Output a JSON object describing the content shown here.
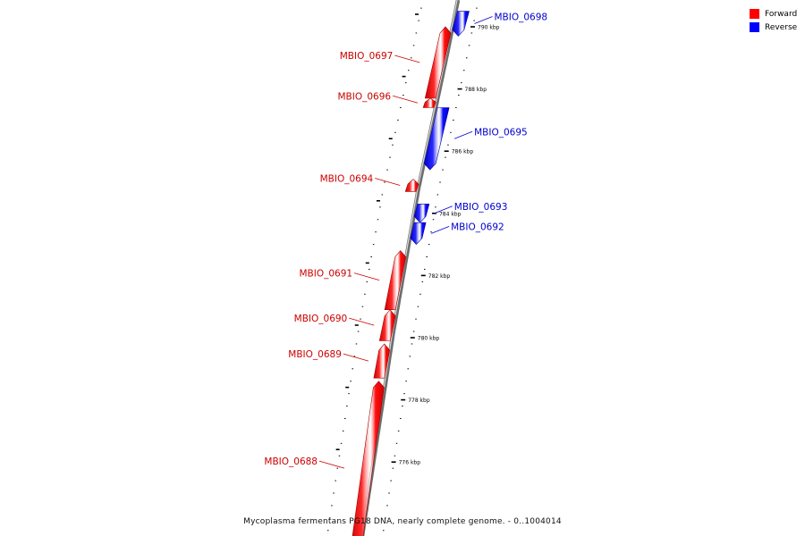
{
  "caption": "Mycoplasma fermentans PG18 DNA, nearly complete genome. - 0..1004014",
  "legend": [
    {
      "label": "Forward",
      "color": "#ff0000"
    },
    {
      "label": "Reverse",
      "color": "#0000ff"
    }
  ],
  "colors": {
    "forward": "#ff0000",
    "reverse": "#0000ff",
    "backbone": "#888888",
    "forward_label": "#cc0000",
    "reverse_label": "#0000cc"
  },
  "ticks": [
    {
      "label": "790 kbp"
    },
    {
      "label": "788 kbp"
    },
    {
      "label": "786 kbp"
    },
    {
      "label": "784 kbp"
    },
    {
      "label": "782 kbp"
    },
    {
      "label": "780 kbp"
    },
    {
      "label": "778 kbp"
    },
    {
      "label": "776 kbp"
    }
  ],
  "genes": [
    {
      "name": "MBIO_0698",
      "strand": "reverse",
      "start_kbp": 789.7,
      "end_kbp": 790.5
    },
    {
      "name": "MBIO_0697",
      "strand": "forward",
      "start_kbp": 787.7,
      "end_kbp": 790.0
    },
    {
      "name": "MBIO_0696",
      "strand": "forward",
      "start_kbp": 787.4,
      "end_kbp": 787.7
    },
    {
      "name": "MBIO_0695",
      "strand": "reverse",
      "start_kbp": 785.4,
      "end_kbp": 787.4
    },
    {
      "name": "MBIO_0694",
      "strand": "forward",
      "start_kbp": 784.7,
      "end_kbp": 785.1
    },
    {
      "name": "MBIO_0693",
      "strand": "reverse",
      "start_kbp": 783.7,
      "end_kbp": 784.3
    },
    {
      "name": "MBIO_0692",
      "strand": "reverse",
      "start_kbp": 783.0,
      "end_kbp": 783.7
    },
    {
      "name": "MBIO_0691",
      "strand": "forward",
      "start_kbp": 780.9,
      "end_kbp": 782.8
    },
    {
      "name": "MBIO_0690",
      "strand": "forward",
      "start_kbp": 779.9,
      "end_kbp": 780.9
    },
    {
      "name": "MBIO_0689",
      "strand": "forward",
      "start_kbp": 778.7,
      "end_kbp": 779.8
    },
    {
      "name": "MBIO_0688",
      "strand": "forward",
      "start_kbp": 773.0,
      "end_kbp": 778.6
    }
  ]
}
